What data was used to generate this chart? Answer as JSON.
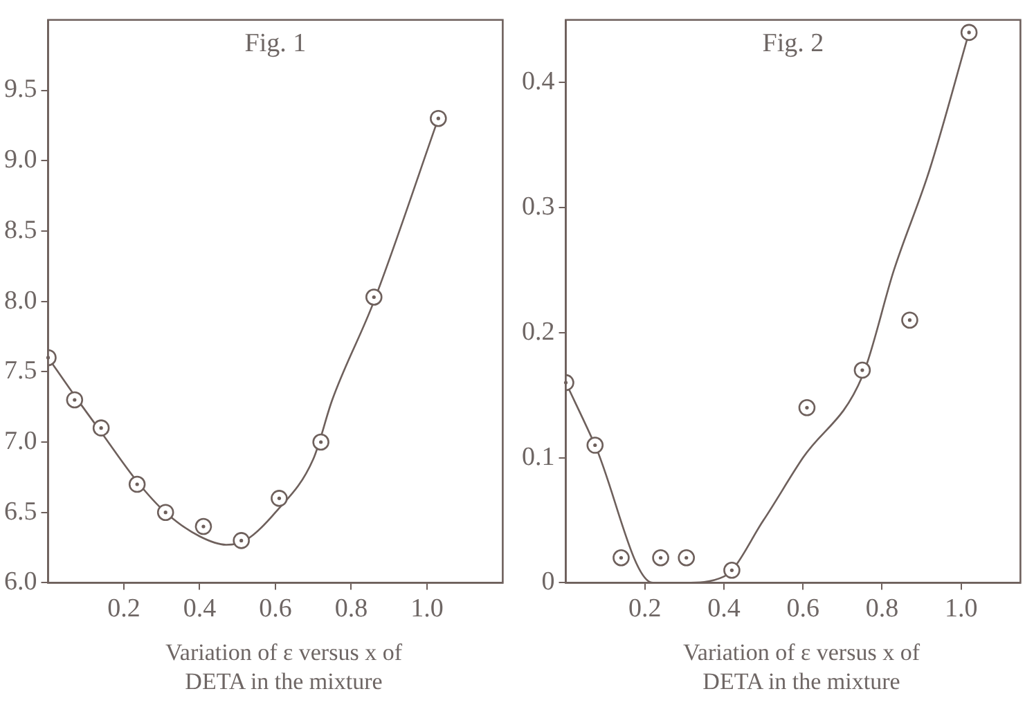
{
  "chart_data": [
    {
      "type": "scatter",
      "title": "Fig. 1",
      "xlabel": "Variation of ε versus x of DETA in the mixture",
      "xlim": [
        0,
        1.2
      ],
      "xticks": [
        0.2,
        0.4,
        0.6,
        0.8,
        {
          "value": 1,
          "label": "1.0"
        }
      ],
      "ylim": [
        6,
        10
      ],
      "yticks": [
        {
          "value": 6,
          "label": "6.0"
        },
        6.5,
        {
          "value": 7,
          "label": "7.0"
        },
        7.5,
        {
          "value": 8,
          "label": "8.0"
        },
        8.5,
        {
          "value": 9,
          "label": "9.0"
        },
        9.5
      ],
      "grid": false,
      "series": [
        {
          "marker": "circle",
          "color": "#6e605c",
          "x": [
            0,
            0.07,
            0.14,
            0.235,
            0.31,
            0.41,
            0.51,
            0.61,
            0.72,
            0.86,
            1.03
          ],
          "values": [
            7.6,
            7.3,
            7.1,
            6.7,
            6.5,
            6.4,
            6.3,
            6.6,
            7.0,
            8.03,
            9.3
          ]
        },
        {
          "type": "line",
          "marker": "none",
          "color": "#6e605c",
          "x": [
            0,
            0.07,
            0.14,
            0.235,
            0.31,
            0.4,
            0.47,
            0.52,
            0.6,
            0.7,
            0.75,
            0.86,
            1.03
          ],
          "values": [
            7.6,
            7.33,
            7.07,
            6.72,
            6.5,
            6.33,
            6.27,
            6.3,
            6.5,
            6.88,
            7.3,
            8.0,
            9.3
          ]
        }
      ]
    },
    {
      "type": "scatter",
      "title": "Fig. 2",
      "xlabel": "Variation of ε versus x of DETA in the mixture",
      "xlim": [
        0,
        1.15
      ],
      "xticks": [
        0.2,
        0.4,
        0.6,
        0.8,
        {
          "value": 1,
          "label": "1.0"
        }
      ],
      "ylim": [
        0,
        0.45
      ],
      "yticks": [
        0,
        0.1,
        0.2,
        0.3,
        0.4
      ],
      "grid": false,
      "series": [
        {
          "marker": "circle",
          "color": "#6e605c",
          "x": [
            0,
            0.074,
            0.14,
            0.24,
            0.305,
            0.42,
            0.61,
            0.75,
            0.87,
            1.02
          ],
          "values": [
            0.16,
            0.11,
            0.02,
            0.02,
            0.02,
            0.01,
            0.14,
            0.17,
            0.21,
            0.44
          ]
        },
        {
          "type": "line",
          "marker": "none",
          "color": "#6e605c",
          "x": [
            0,
            0.074,
            0.22,
            0.3,
            0.4,
            0.5,
            0.6,
            0.75,
            0.83,
            0.92,
            1.02
          ],
          "values": [
            0.16,
            0.11,
            0,
            0,
            0.005,
            0.05,
            0.1,
            0.165,
            0.25,
            0.33,
            0.44
          ]
        }
      ]
    }
  ]
}
